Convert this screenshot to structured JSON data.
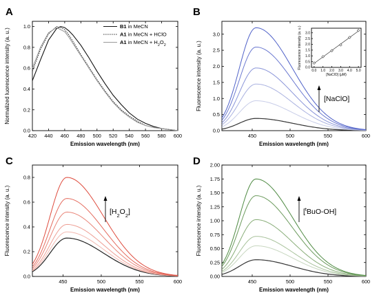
{
  "chart_data": [
    {
      "panel": "A",
      "type": "line",
      "xlabel": "Emission wavelength (nm)",
      "ylabel": "Normalized luorescence intensity (a. u.)",
      "xlim": [
        420,
        600
      ],
      "ylim": [
        0.0,
        1.05
      ],
      "xticks": [
        420,
        440,
        460,
        480,
        500,
        520,
        540,
        560,
        580,
        600
      ],
      "yticks": [
        0.0,
        0.2,
        0.4,
        0.6,
        0.8,
        1.0
      ],
      "legend": {
        "position": "top-right",
        "entries": [
          {
            "bold": "B1",
            "text": " in MeCN"
          },
          {
            "bold": "A1",
            "text": " in MeCN + HClO"
          },
          {
            "bold": "A1",
            "text": " in MeCN + H",
            "sub": "2",
            "text2": "O",
            "sub2": "2"
          }
        ]
      },
      "series": [
        {
          "color": "#111111",
          "style": "solid",
          "x": [
            420,
            430,
            440,
            450,
            455,
            460,
            465,
            470,
            480,
            490,
            500,
            510,
            520,
            530,
            540,
            550,
            560,
            570,
            580,
            590,
            600
          ],
          "y": [
            0.48,
            0.68,
            0.87,
            0.98,
            1.0,
            0.99,
            0.96,
            0.92,
            0.82,
            0.7,
            0.57,
            0.45,
            0.34,
            0.25,
            0.17,
            0.11,
            0.07,
            0.04,
            0.02,
            0.01,
            0.0
          ]
        },
        {
          "color": "#333333",
          "style": "dotted",
          "x": [
            420,
            430,
            440,
            450,
            455,
            460,
            465,
            470,
            480,
            490,
            500,
            510,
            520,
            530,
            540,
            550,
            560,
            570,
            580,
            590,
            600
          ],
          "y": [
            0.57,
            0.78,
            0.93,
            1.0,
            0.99,
            0.97,
            0.92,
            0.86,
            0.73,
            0.61,
            0.49,
            0.38,
            0.28,
            0.2,
            0.14,
            0.09,
            0.05,
            0.03,
            0.02,
            0.01,
            0.0
          ]
        },
        {
          "color": "#999999",
          "style": "solid",
          "x": [
            420,
            430,
            440,
            450,
            455,
            460,
            465,
            470,
            480,
            490,
            500,
            510,
            520,
            530,
            540,
            550,
            560,
            570,
            580,
            590,
            600
          ],
          "y": [
            0.6,
            0.8,
            0.94,
            0.99,
            0.97,
            0.95,
            0.9,
            0.84,
            0.72,
            0.6,
            0.48,
            0.37,
            0.27,
            0.19,
            0.13,
            0.08,
            0.05,
            0.03,
            0.02,
            0.01,
            0.0
          ]
        }
      ]
    },
    {
      "panel": "B",
      "type": "line",
      "xlabel": "Emission wavelength (nm)",
      "ylabel": "Fluorescence intensity (a. u.)",
      "xlim": [
        410,
        600
      ],
      "ylim": [
        0.0,
        3.4
      ],
      "xticks": [
        450,
        500,
        550,
        600
      ],
      "yticks": [
        0.0,
        0.5,
        1.0,
        1.5,
        2.0,
        2.5,
        3.0
      ],
      "annotation": "[NaClO]",
      "peaks": [
        0.38,
        0.93,
        1.45,
        1.95,
        2.6,
        3.2
      ],
      "colors": [
        "#333333",
        "#c8cde8",
        "#a9b1e0",
        "#8893d8",
        "#6a78d0",
        "#4f61c8"
      ],
      "inset": {
        "xlabel": "[NaClO] (μM)",
        "ylabel": "Fluorescence intensity (a. u.)",
        "xlim": [
          -0.3,
          5.3
        ],
        "ylim": [
          0.0,
          3.4
        ],
        "xticks": [
          0.0,
          1.0,
          2.0,
          3.0,
          4.0,
          5.0
        ],
        "yticks": [
          0.0,
          0.5,
          1.0,
          1.5,
          2.0,
          2.5,
          3.0
        ],
        "x": [
          0.0,
          1.0,
          2.0,
          3.0,
          4.0,
          5.0
        ],
        "y": [
          0.38,
          0.93,
          1.45,
          1.95,
          2.6,
          3.2
        ]
      }
    },
    {
      "panel": "C",
      "type": "line",
      "xlabel": "Emission wavelength (nm)",
      "ylabel": "Fluorescence intensity (a. u.)",
      "xlim": [
        410,
        600
      ],
      "ylim": [
        0.0,
        0.9
      ],
      "xticks": [
        450,
        500,
        550,
        600
      ],
      "yticks": [
        0.0,
        0.2,
        0.4,
        0.6,
        0.8
      ],
      "annotation": {
        "pre": "[H",
        "sub1": "2",
        "mid": "O",
        "sub2": "2",
        "post": "]"
      },
      "peaks": [
        0.31,
        0.36,
        0.42,
        0.52,
        0.63,
        0.8
      ],
      "colors": [
        "#222222",
        "#f2b8b0",
        "#ee9f95",
        "#e98579",
        "#e46a5d",
        "#de4a3c"
      ]
    },
    {
      "panel": "D",
      "type": "line",
      "xlabel": "Emission wavelength (nm)",
      "ylabel": "Fluorescence intensity (a. u.)",
      "xlim": [
        410,
        600
      ],
      "ylim": [
        0.0,
        2.0
      ],
      "xticks": [
        450,
        500,
        550,
        600
      ],
      "yticks": [
        0.0,
        0.25,
        0.5,
        0.75,
        1.0,
        1.25,
        1.5,
        1.75,
        2.0
      ],
      "ytick_labels": [
        "0.00",
        "0.25",
        "0.50",
        "0.75",
        "1.00",
        "1.25",
        "1.50",
        "1.75",
        "2.00"
      ],
      "annotation": {
        "pre": "[",
        "sup": "t",
        "post": "BuO-OH]"
      },
      "peaks": [
        0.3,
        0.55,
        0.72,
        1.02,
        1.45,
        1.75
      ],
      "colors": [
        "#333333",
        "#c7d6bf",
        "#a8c29b",
        "#88ad78",
        "#6b9a5c",
        "#4e8a42"
      ]
    }
  ]
}
